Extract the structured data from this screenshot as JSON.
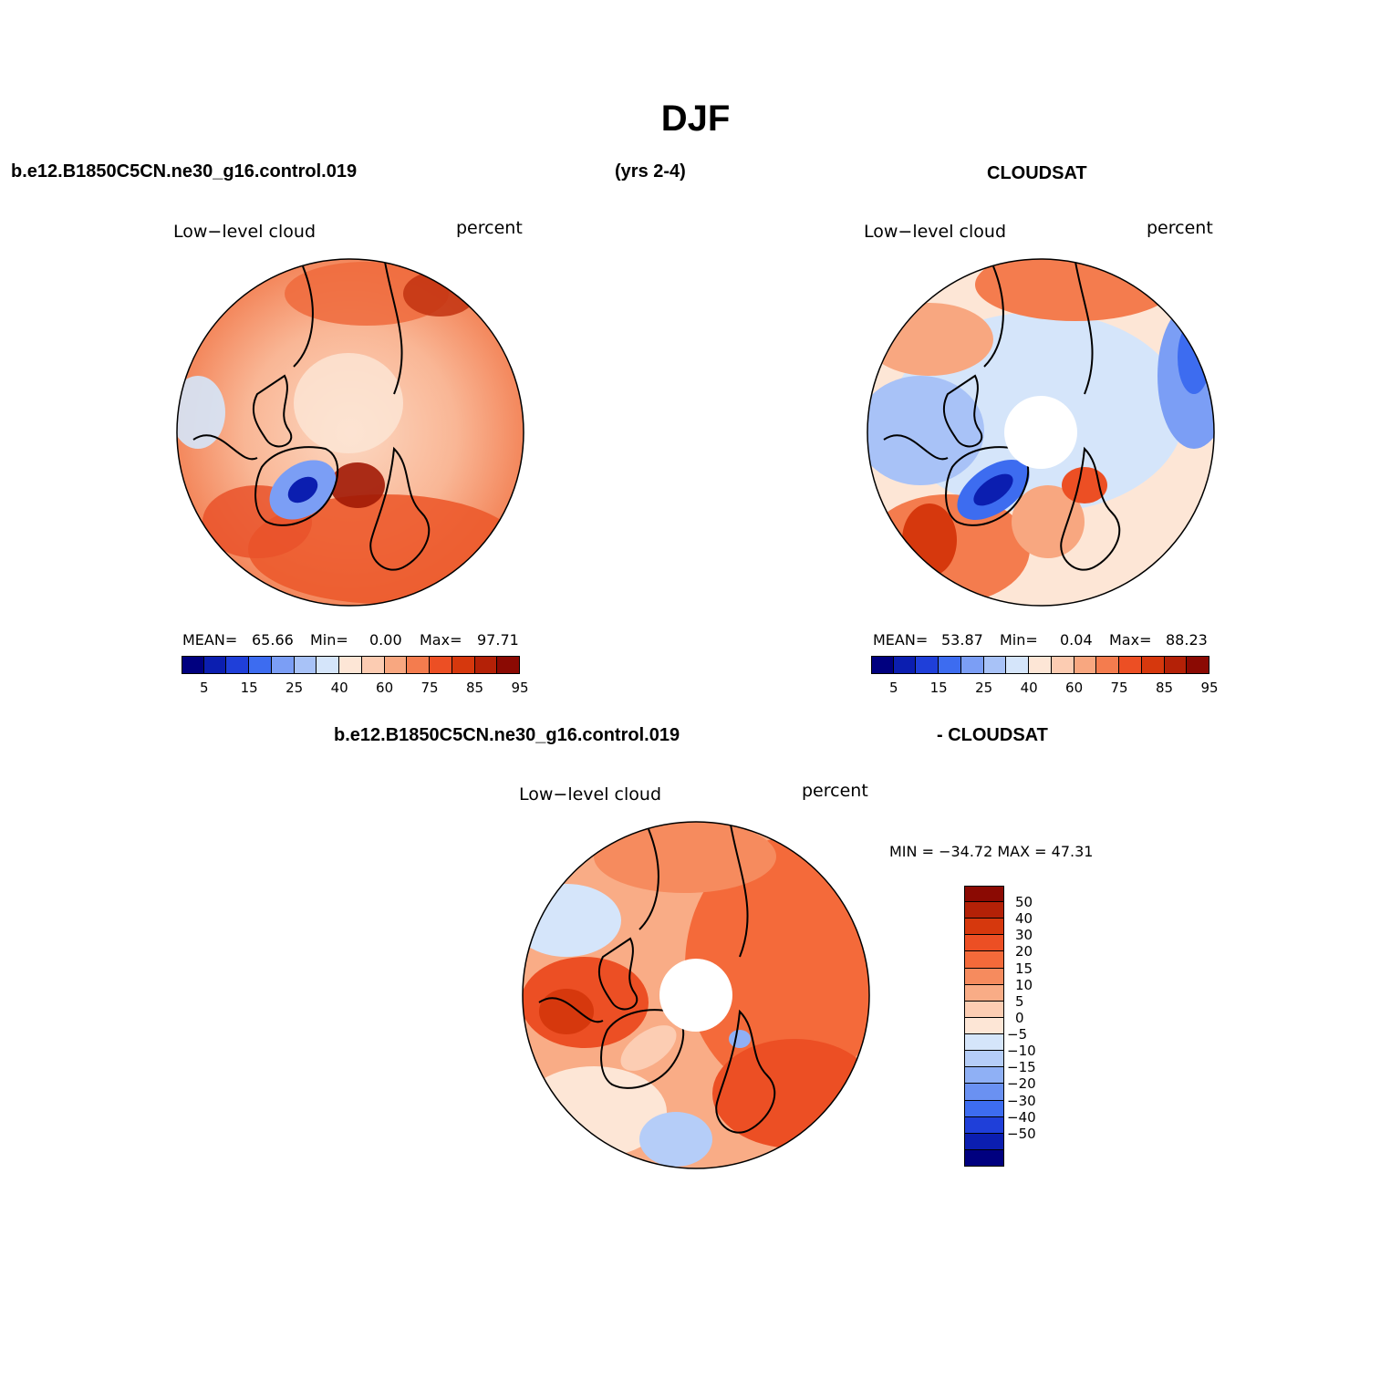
{
  "season_title": "DJF",
  "top_left_case": "b.e12.B1850C5CN.ne30_g16.control.019",
  "top_years": "(yrs 2-4)",
  "top_right_obs": "CLOUDSAT",
  "bottom_case": "b.e12.B1850C5CN.ne30_g16.control.019",
  "bottom_obs": "- CLOUDSAT",
  "panels": {
    "model": {
      "variable": "Low−level cloud",
      "units": "percent",
      "mean_label": "MEAN=",
      "mean_value": "65.66",
      "min_label": "Min=",
      "min_value": "0.00",
      "max_label": "Max=",
      "max_value": "97.71"
    },
    "obs": {
      "variable": "Low−level cloud",
      "units": "percent",
      "mean_label": "MEAN=",
      "mean_value": "53.87",
      "min_label": "Min=",
      "min_value": "0.04",
      "max_label": "Max=",
      "max_value": "88.23"
    },
    "diff": {
      "variable": "Low−level cloud",
      "units": "percent",
      "minmax_text": "MIN = −34.72 MAX =  47.31"
    }
  },
  "abs_colorbar": {
    "colors": [
      "#00007f",
      "#0b1eb0",
      "#1f3fd9",
      "#3d6cf0",
      "#7b9ef5",
      "#a8c2f7",
      "#d5e5fa",
      "#fde6d6",
      "#fcccb2",
      "#f8a780",
      "#f47c4e",
      "#ec4f24",
      "#d6380d",
      "#b42107",
      "#8b0a03"
    ],
    "tick_labels": [
      "5",
      "15",
      "25",
      "40",
      "60",
      "75",
      "85",
      "95"
    ]
  },
  "diff_colorbar": {
    "colors": [
      "#8b0a03",
      "#b42107",
      "#d6380d",
      "#ec4f24",
      "#f46a3a",
      "#f68b5e",
      "#f9ac86",
      "#fccdb3",
      "#fde6d6",
      "#d5e5fa",
      "#b5cdf8",
      "#8fb0f5",
      "#6a91f2",
      "#3d6cf0",
      "#1f3fd9",
      "#0b1eb0",
      "#00007f"
    ],
    "tick_labels": [
      "50",
      "40",
      "30",
      "20",
      "15",
      "10",
      "5",
      "0",
      "−5",
      "−10",
      "−15",
      "−20",
      "−30",
      "−40",
      "−50"
    ]
  }
}
